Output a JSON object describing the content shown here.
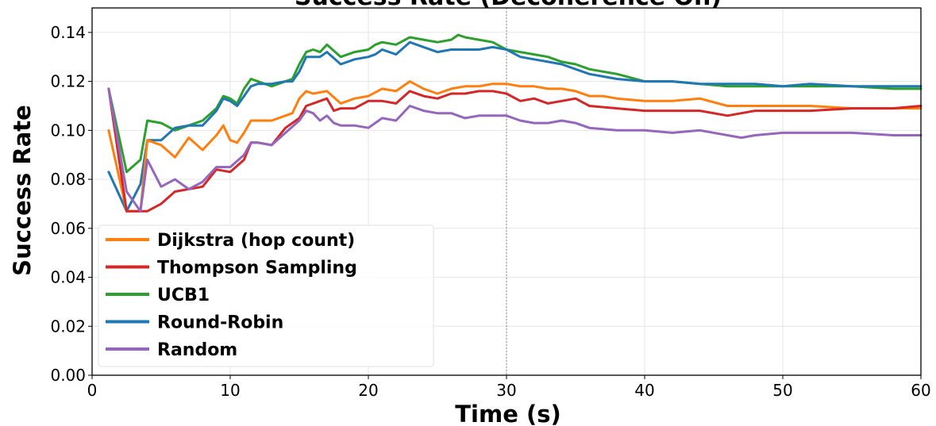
{
  "chart_data": {
    "type": "line",
    "title": "Success Rate (Decoherence On)",
    "xlabel": "Time (s)",
    "ylabel": "Success Rate",
    "xlim": [
      0,
      60
    ],
    "ylim": [
      0,
      0.15
    ],
    "xticks": [
      "0",
      "10",
      "20",
      "30",
      "40",
      "50",
      "60"
    ],
    "yticks": [
      "0.00",
      "0.02",
      "0.04",
      "0.06",
      "0.08",
      "0.10",
      "0.12",
      "0.14"
    ],
    "grid": true,
    "legend_position": "lower-left",
    "vline_x": 30,
    "series": [
      {
        "name": "Dijkstra (hop count)",
        "color": "#ff7f0e",
        "points": [
          [
            1.2,
            0.1
          ],
          [
            2.5,
            0.067
          ],
          [
            3.5,
            0.067
          ],
          [
            4,
            0.096
          ],
          [
            5,
            0.094
          ],
          [
            6,
            0.089
          ],
          [
            7,
            0.097
          ],
          [
            8,
            0.092
          ],
          [
            9,
            0.098
          ],
          [
            9.5,
            0.102
          ],
          [
            10,
            0.096
          ],
          [
            10.5,
            0.095
          ],
          [
            11,
            0.099
          ],
          [
            11.5,
            0.104
          ],
          [
            12,
            0.104
          ],
          [
            13,
            0.104
          ],
          [
            14,
            0.106
          ],
          [
            14.5,
            0.107
          ],
          [
            15,
            0.113
          ],
          [
            15.5,
            0.116
          ],
          [
            16,
            0.115
          ],
          [
            17,
            0.116
          ],
          [
            18,
            0.111
          ],
          [
            19,
            0.113
          ],
          [
            20,
            0.114
          ],
          [
            21,
            0.117
          ],
          [
            22,
            0.116
          ],
          [
            23,
            0.12
          ],
          [
            24,
            0.117
          ],
          [
            25,
            0.115
          ],
          [
            26,
            0.117
          ],
          [
            27,
            0.118
          ],
          [
            28,
            0.118
          ],
          [
            29,
            0.119
          ],
          [
            30,
            0.119
          ],
          [
            31,
            0.118
          ],
          [
            32,
            0.118
          ],
          [
            33,
            0.117
          ],
          [
            34,
            0.117
          ],
          [
            35,
            0.116
          ],
          [
            36,
            0.114
          ],
          [
            37,
            0.114
          ],
          [
            38,
            0.113
          ],
          [
            40,
            0.112
          ],
          [
            42,
            0.112
          ],
          [
            44,
            0.113
          ],
          [
            46,
            0.11
          ],
          [
            48,
            0.11
          ],
          [
            50,
            0.11
          ],
          [
            52,
            0.11
          ],
          [
            55,
            0.109
          ],
          [
            58,
            0.109
          ],
          [
            60,
            0.109
          ]
        ]
      },
      {
        "name": "Thompson Sampling",
        "color": "#d62728",
        "points": [
          [
            1.2,
            0.117
          ],
          [
            2.5,
            0.067
          ],
          [
            3,
            0.067
          ],
          [
            4,
            0.067
          ],
          [
            5,
            0.07
          ],
          [
            6,
            0.075
          ],
          [
            7,
            0.076
          ],
          [
            8,
            0.077
          ],
          [
            9,
            0.084
          ],
          [
            10,
            0.083
          ],
          [
            11,
            0.088
          ],
          [
            11.5,
            0.095
          ],
          [
            12,
            0.095
          ],
          [
            13,
            0.094
          ],
          [
            14,
            0.101
          ],
          [
            15,
            0.105
          ],
          [
            15.5,
            0.11
          ],
          [
            16,
            0.111
          ],
          [
            17,
            0.113
          ],
          [
            17.5,
            0.108
          ],
          [
            18,
            0.109
          ],
          [
            19,
            0.109
          ],
          [
            20,
            0.112
          ],
          [
            21,
            0.112
          ],
          [
            22,
            0.111
          ],
          [
            23,
            0.116
          ],
          [
            24,
            0.114
          ],
          [
            25,
            0.113
          ],
          [
            26,
            0.115
          ],
          [
            27,
            0.115
          ],
          [
            28,
            0.116
          ],
          [
            29,
            0.116
          ],
          [
            30,
            0.115
          ],
          [
            31,
            0.112
          ],
          [
            32,
            0.113
          ],
          [
            33,
            0.111
          ],
          [
            34,
            0.112
          ],
          [
            35,
            0.113
          ],
          [
            36,
            0.11
          ],
          [
            38,
            0.109
          ],
          [
            40,
            0.108
          ],
          [
            42,
            0.108
          ],
          [
            44,
            0.108
          ],
          [
            46,
            0.106
          ],
          [
            47,
            0.107
          ],
          [
            48,
            0.108
          ],
          [
            50,
            0.108
          ],
          [
            52,
            0.108
          ],
          [
            55,
            0.109
          ],
          [
            58,
            0.109
          ],
          [
            60,
            0.11
          ]
        ]
      },
      {
        "name": "UCB1",
        "color": "#2ca02c",
        "points": [
          [
            1.2,
            0.117
          ],
          [
            2.5,
            0.083
          ],
          [
            3.5,
            0.088
          ],
          [
            4,
            0.104
          ],
          [
            5,
            0.103
          ],
          [
            6,
            0.1
          ],
          [
            7,
            0.102
          ],
          [
            8,
            0.104
          ],
          [
            9,
            0.109
          ],
          [
            9.5,
            0.114
          ],
          [
            10,
            0.113
          ],
          [
            10.5,
            0.111
          ],
          [
            11,
            0.117
          ],
          [
            11.5,
            0.121
          ],
          [
            12,
            0.12
          ],
          [
            12.5,
            0.119
          ],
          [
            13,
            0.118
          ],
          [
            14,
            0.12
          ],
          [
            14.5,
            0.121
          ],
          [
            15,
            0.127
          ],
          [
            15.5,
            0.132
          ],
          [
            16,
            0.133
          ],
          [
            16.5,
            0.132
          ],
          [
            17,
            0.135
          ],
          [
            18,
            0.13
          ],
          [
            19,
            0.132
          ],
          [
            20,
            0.133
          ],
          [
            20.5,
            0.135
          ],
          [
            21,
            0.136
          ],
          [
            22,
            0.135
          ],
          [
            23,
            0.138
          ],
          [
            24,
            0.137
          ],
          [
            25,
            0.136
          ],
          [
            26,
            0.137
          ],
          [
            26.5,
            0.139
          ],
          [
            27,
            0.138
          ],
          [
            28,
            0.137
          ],
          [
            29,
            0.136
          ],
          [
            30,
            0.133
          ],
          [
            31,
            0.132
          ],
          [
            32,
            0.131
          ],
          [
            33,
            0.13
          ],
          [
            34,
            0.128
          ],
          [
            35,
            0.127
          ],
          [
            36,
            0.125
          ],
          [
            37,
            0.124
          ],
          [
            38,
            0.123
          ],
          [
            40,
            0.12
          ],
          [
            42,
            0.12
          ],
          [
            44,
            0.119
          ],
          [
            46,
            0.118
          ],
          [
            48,
            0.118
          ],
          [
            50,
            0.118
          ],
          [
            52,
            0.118
          ],
          [
            55,
            0.118
          ],
          [
            58,
            0.117
          ],
          [
            60,
            0.117
          ]
        ]
      },
      {
        "name": "Round-Robin",
        "color": "#1f77b4",
        "points": [
          [
            1.2,
            0.083
          ],
          [
            2.5,
            0.067
          ],
          [
            3.5,
            0.078
          ],
          [
            4,
            0.096
          ],
          [
            5,
            0.096
          ],
          [
            6,
            0.101
          ],
          [
            7,
            0.102
          ],
          [
            8,
            0.102
          ],
          [
            9,
            0.108
          ],
          [
            9.5,
            0.113
          ],
          [
            10,
            0.112
          ],
          [
            10.5,
            0.11
          ],
          [
            11,
            0.114
          ],
          [
            11.5,
            0.118
          ],
          [
            12,
            0.119
          ],
          [
            13,
            0.119
          ],
          [
            14,
            0.12
          ],
          [
            14.5,
            0.12
          ],
          [
            15,
            0.124
          ],
          [
            15.5,
            0.13
          ],
          [
            16,
            0.13
          ],
          [
            16.5,
            0.13
          ],
          [
            17,
            0.132
          ],
          [
            18,
            0.127
          ],
          [
            19,
            0.129
          ],
          [
            20,
            0.13
          ],
          [
            20.5,
            0.131
          ],
          [
            21,
            0.133
          ],
          [
            22,
            0.131
          ],
          [
            23,
            0.136
          ],
          [
            24,
            0.134
          ],
          [
            25,
            0.132
          ],
          [
            26,
            0.133
          ],
          [
            27,
            0.133
          ],
          [
            28,
            0.133
          ],
          [
            29,
            0.134
          ],
          [
            30,
            0.133
          ],
          [
            31,
            0.13
          ],
          [
            32,
            0.129
          ],
          [
            33,
            0.128
          ],
          [
            34,
            0.127
          ],
          [
            35,
            0.125
          ],
          [
            36,
            0.123
          ],
          [
            37,
            0.122
          ],
          [
            38,
            0.121
          ],
          [
            40,
            0.12
          ],
          [
            42,
            0.12
          ],
          [
            44,
            0.119
          ],
          [
            46,
            0.119
          ],
          [
            48,
            0.119
          ],
          [
            50,
            0.118
          ],
          [
            52,
            0.119
          ],
          [
            55,
            0.118
          ],
          [
            58,
            0.118
          ],
          [
            60,
            0.118
          ]
        ]
      },
      {
        "name": "Random",
        "color": "#9467bd",
        "points": [
          [
            1.2,
            0.117
          ],
          [
            2.5,
            0.075
          ],
          [
            3.5,
            0.067
          ],
          [
            4,
            0.088
          ],
          [
            5,
            0.077
          ],
          [
            6,
            0.08
          ],
          [
            7,
            0.076
          ],
          [
            8,
            0.079
          ],
          [
            9,
            0.085
          ],
          [
            10,
            0.085
          ],
          [
            11,
            0.09
          ],
          [
            11.5,
            0.095
          ],
          [
            12,
            0.095
          ],
          [
            13,
            0.094
          ],
          [
            14,
            0.099
          ],
          [
            15,
            0.104
          ],
          [
            15.5,
            0.108
          ],
          [
            16,
            0.107
          ],
          [
            16.5,
            0.104
          ],
          [
            17,
            0.106
          ],
          [
            17.5,
            0.103
          ],
          [
            18,
            0.102
          ],
          [
            19,
            0.102
          ],
          [
            20,
            0.101
          ],
          [
            21,
            0.105
          ],
          [
            22,
            0.104
          ],
          [
            23,
            0.11
          ],
          [
            24,
            0.108
          ],
          [
            25,
            0.107
          ],
          [
            26,
            0.107
          ],
          [
            27,
            0.105
          ],
          [
            28,
            0.106
          ],
          [
            29,
            0.106
          ],
          [
            30,
            0.106
          ],
          [
            31,
            0.104
          ],
          [
            32,
            0.103
          ],
          [
            33,
            0.103
          ],
          [
            34,
            0.104
          ],
          [
            35,
            0.103
          ],
          [
            36,
            0.101
          ],
          [
            38,
            0.1
          ],
          [
            40,
            0.1
          ],
          [
            42,
            0.099
          ],
          [
            44,
            0.1
          ],
          [
            46,
            0.098
          ],
          [
            47,
            0.097
          ],
          [
            48,
            0.098
          ],
          [
            50,
            0.099
          ],
          [
            52,
            0.099
          ],
          [
            55,
            0.099
          ],
          [
            58,
            0.098
          ],
          [
            60,
            0.098
          ]
        ]
      }
    ]
  }
}
